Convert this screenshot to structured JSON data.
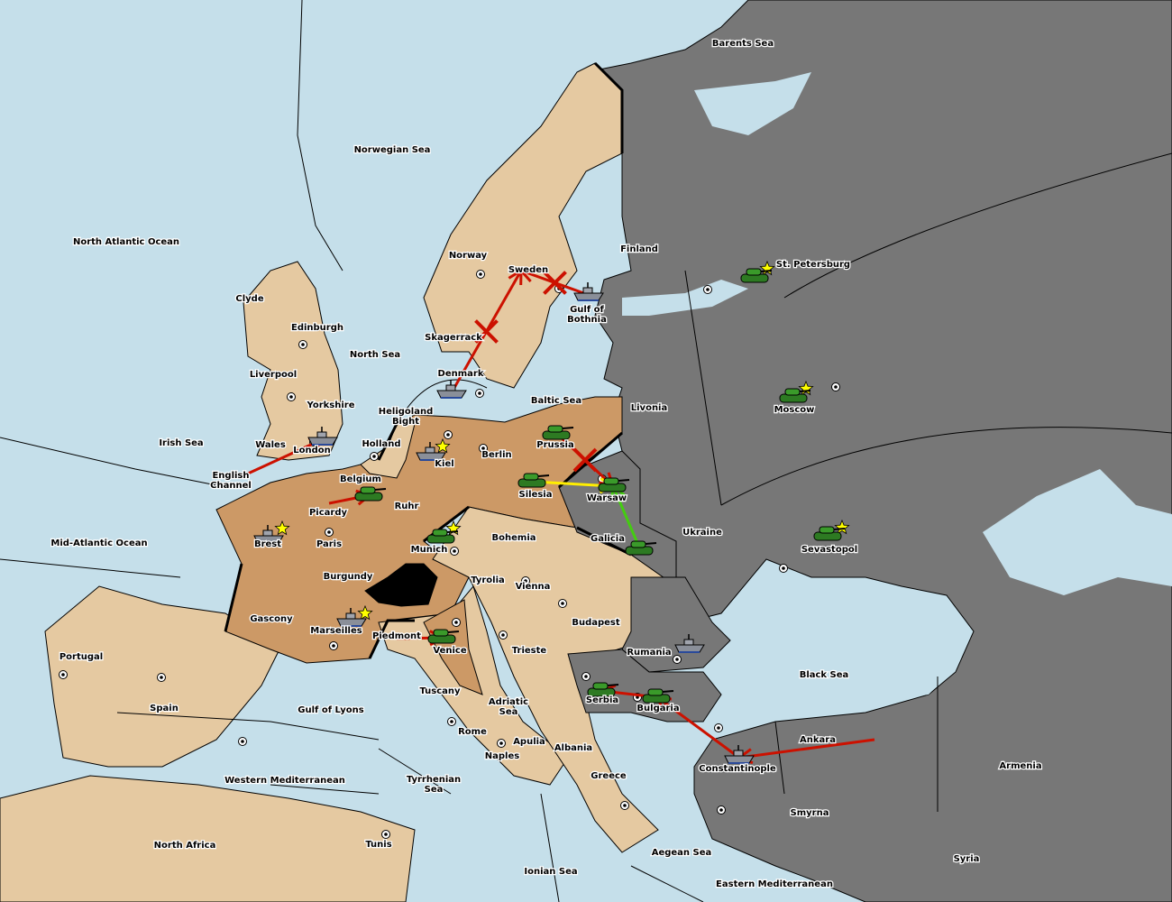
{
  "colors": {
    "sea": "#c5dfea",
    "neutral": "#e5c9a1",
    "brown": "#cc9966",
    "gray": "#777777",
    "switzerland": "#000000",
    "army": "#3a9a2a",
    "fleet": "#8a8f99",
    "order_red": "#cc1100",
    "order_yellow": "#ffee00",
    "order_green": "#44cc11",
    "star": "#ffff00"
  },
  "provinces": [
    {
      "name": "Barents Sea"
    },
    {
      "name": "Norwegian Sea"
    },
    {
      "name": "North Atlantic Ocean"
    },
    {
      "name": "Clyde"
    },
    {
      "name": "Edinburgh"
    },
    {
      "name": "Liverpool"
    },
    {
      "name": "North Sea"
    },
    {
      "name": "Yorkshire"
    },
    {
      "name": "Irish Sea"
    },
    {
      "name": "Wales"
    },
    {
      "name": "London"
    },
    {
      "name": "English Channel"
    },
    {
      "name": "Belgium"
    },
    {
      "name": "Holland"
    },
    {
      "name": "Heligoland Bight"
    },
    {
      "name": "Kiel"
    },
    {
      "name": "Berlin"
    },
    {
      "name": "Prussia"
    },
    {
      "name": "Baltic Sea"
    },
    {
      "name": "Denmark"
    },
    {
      "name": "Skagerrack"
    },
    {
      "name": "Norway"
    },
    {
      "name": "Sweden"
    },
    {
      "name": "Gulf of Bothnia"
    },
    {
      "name": "Finland"
    },
    {
      "name": "St. Petersburg"
    },
    {
      "name": "Livonia"
    },
    {
      "name": "Moscow"
    },
    {
      "name": "Warsaw"
    },
    {
      "name": "Silesia"
    },
    {
      "name": "Ruhr"
    },
    {
      "name": "Picardy"
    },
    {
      "name": "Brest"
    },
    {
      "name": "Paris"
    },
    {
      "name": "Mid-Atlantic Ocean"
    },
    {
      "name": "Burgundy"
    },
    {
      "name": "Munich"
    },
    {
      "name": "Bohemia"
    },
    {
      "name": "Galicia"
    },
    {
      "name": "Ukraine"
    },
    {
      "name": "Sevastopol"
    },
    {
      "name": "Tyrolia"
    },
    {
      "name": "Vienna"
    },
    {
      "name": "Budapest"
    },
    {
      "name": "Gascony"
    },
    {
      "name": "Marseilles"
    },
    {
      "name": "Piedmont"
    },
    {
      "name": "Venice"
    },
    {
      "name": "Trieste"
    },
    {
      "name": "Rumania"
    },
    {
      "name": "Black Sea"
    },
    {
      "name": "Portugal"
    },
    {
      "name": "Spain"
    },
    {
      "name": "Gulf of Lyons"
    },
    {
      "name": "Tuscany"
    },
    {
      "name": "Adriatic Sea"
    },
    {
      "name": "Serbia"
    },
    {
      "name": "Bulgaria"
    },
    {
      "name": "Ankara"
    },
    {
      "name": "Armenia"
    },
    {
      "name": "Rome"
    },
    {
      "name": "Apulia"
    },
    {
      "name": "Albania"
    },
    {
      "name": "Naples"
    },
    {
      "name": "Constantinople"
    },
    {
      "name": "Western Mediterranean"
    },
    {
      "name": "Tyrrhenian Sea"
    },
    {
      "name": "Greece"
    },
    {
      "name": "Smyrna"
    },
    {
      "name": "North Africa"
    },
    {
      "name": "Tunis"
    },
    {
      "name": "Ionian Sea"
    },
    {
      "name": "Aegean Sea"
    },
    {
      "name": "Eastern Mediterranean"
    },
    {
      "name": "Syria"
    }
  ],
  "units": [
    {
      "type": "fleet",
      "province": "London",
      "power": "gray"
    },
    {
      "type": "army",
      "province": "Belgium",
      "power": "green"
    },
    {
      "type": "fleet",
      "province": "Brest",
      "power": "gray"
    },
    {
      "type": "army",
      "province": "Munich",
      "power": "green"
    },
    {
      "type": "fleet",
      "province": "Kiel",
      "power": "gray"
    },
    {
      "type": "fleet",
      "province": "Denmark",
      "power": "gray"
    },
    {
      "type": "army",
      "province": "Prussia",
      "power": "green"
    },
    {
      "type": "army",
      "province": "Silesia",
      "power": "green"
    },
    {
      "type": "army",
      "province": "Warsaw",
      "power": "green"
    },
    {
      "type": "army",
      "province": "Galicia",
      "power": "green"
    },
    {
      "type": "fleet",
      "province": "Gulf of Bothnia",
      "power": "gray"
    },
    {
      "type": "army",
      "province": "St. Petersburg",
      "power": "green"
    },
    {
      "type": "army",
      "province": "Moscow",
      "power": "green"
    },
    {
      "type": "army",
      "province": "Sevastopol",
      "power": "green"
    },
    {
      "type": "fleet",
      "province": "Marseilles",
      "power": "gray"
    },
    {
      "type": "army",
      "province": "Venice",
      "power": "green"
    },
    {
      "type": "fleet",
      "province": "Rumania",
      "power": "gray"
    },
    {
      "type": "army",
      "province": "Serbia",
      "power": "green"
    },
    {
      "type": "army",
      "province": "Bulgaria",
      "power": "green"
    },
    {
      "type": "fleet",
      "province": "Constantinople",
      "power": "gray"
    }
  ],
  "home_stars": [
    "Brest",
    "Munich",
    "Kiel",
    "St. Petersburg",
    "Moscow",
    "Sevastopol",
    "Marseilles"
  ],
  "orders": [
    {
      "from": "Wales",
      "to": "London",
      "color": "red",
      "failed": false
    },
    {
      "from": "Picardy",
      "to": "Belgium",
      "color": "red",
      "failed": false
    },
    {
      "from": "Denmark",
      "to": "Sweden",
      "color": "red",
      "failed": true
    },
    {
      "from": "Gulf of Bothnia",
      "to": "Sweden",
      "color": "red",
      "failed": true
    },
    {
      "from": "Prussia",
      "to": "Warsaw",
      "color": "red",
      "failed": true
    },
    {
      "from": "Silesia",
      "to": "Warsaw",
      "color": "yellow",
      "failed": false
    },
    {
      "from": "Galicia",
      "to": "Warsaw",
      "color": "green",
      "failed": false
    },
    {
      "from": "Piedmont",
      "to": "Venice",
      "color": "red",
      "failed": false
    },
    {
      "from": "Bulgaria",
      "to": "Serbia",
      "color": "red",
      "failed": false
    },
    {
      "from": "Constantinople",
      "to": "Bulgaria",
      "color": "red",
      "failed": false
    },
    {
      "from": "Ankara",
      "to": "Constantinople",
      "color": "red",
      "failed": false
    }
  ]
}
